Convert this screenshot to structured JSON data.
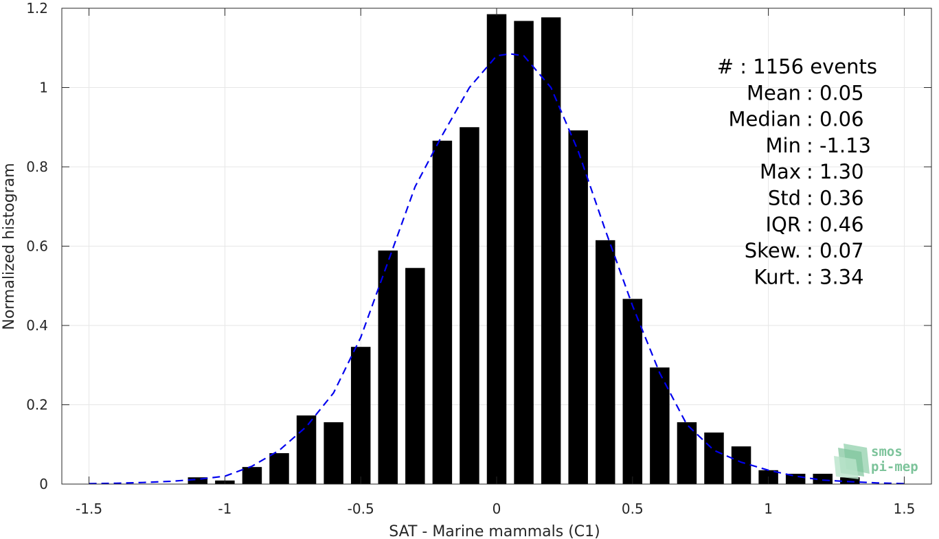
{
  "chart_data": {
    "type": "bar",
    "xlabel": "SAT - Marine mammals (C1)",
    "ylabel": "Normalized histogram",
    "xlim": [
      -1.6,
      1.6
    ],
    "ylim": [
      0,
      1.2
    ],
    "xticks": [
      -1.5,
      -1,
      -0.5,
      0,
      0.5,
      1,
      1.5
    ],
    "xtick_labels": [
      "-1.5",
      "-1",
      "-0.5",
      "0",
      "0.5",
      "1",
      "1.5"
    ],
    "yticks": [
      0,
      0.2,
      0.4,
      0.6,
      0.8,
      1,
      1.2
    ],
    "ytick_labels": [
      "0",
      "0.2",
      "0.4",
      "0.6",
      "0.8",
      "1",
      "1.2"
    ],
    "grid": true,
    "bar_color": "#000000",
    "bars": {
      "x": [
        -1.1,
        -1.0,
        -0.9,
        -0.8,
        -0.7,
        -0.6,
        -0.5,
        -0.4,
        -0.3,
        -0.2,
        -0.1,
        0.0,
        0.1,
        0.2,
        0.3,
        0.4,
        0.5,
        0.6,
        0.7,
        0.8,
        0.9,
        1.0,
        1.1,
        1.2,
        1.3
      ],
      "values": [
        0.017,
        0.009,
        0.043,
        0.078,
        0.173,
        0.156,
        0.346,
        0.589,
        0.545,
        0.866,
        0.9,
        1.185,
        1.168,
        1.177,
        0.892,
        0.615,
        0.467,
        0.294,
        0.156,
        0.13,
        0.095,
        0.035,
        0.026,
        0.026,
        0.017
      ]
    },
    "fit_curve": {
      "style": "dashed",
      "color": "#0000ee",
      "x": [
        -1.5,
        -1.4,
        -1.3,
        -1.2,
        -1.1,
        -1.0,
        -0.9,
        -0.8,
        -0.7,
        -0.6,
        -0.5,
        -0.4,
        -0.3,
        -0.2,
        -0.1,
        0.0,
        0.05,
        0.1,
        0.2,
        0.3,
        0.4,
        0.5,
        0.6,
        0.7,
        0.8,
        0.9,
        1.0,
        1.1,
        1.2,
        1.3,
        1.4,
        1.5
      ],
      "y": [
        0.001,
        0.002,
        0.004,
        0.007,
        0.012,
        0.02,
        0.045,
        0.085,
        0.145,
        0.23,
        0.37,
        0.56,
        0.75,
        0.88,
        1.0,
        1.08,
        1.085,
        1.08,
        1.0,
        0.84,
        0.64,
        0.45,
        0.28,
        0.15,
        0.085,
        0.055,
        0.035,
        0.02,
        0.01,
        0.006,
        0.003,
        0.001
      ]
    },
    "stats_box": {
      "placement": "top-right",
      "lines": [
        "#  : 1156 events",
        "Mean : 0.05",
        "Median : 0.06",
        "Min : -1.13",
        "Max : 1.30",
        "Std : 0.36",
        "IQR : 0.46",
        "Skew. : 0.07",
        "Kurt. : 3.34"
      ]
    }
  },
  "logo": {
    "line1": "smos",
    "line2": "pi-mep"
  }
}
